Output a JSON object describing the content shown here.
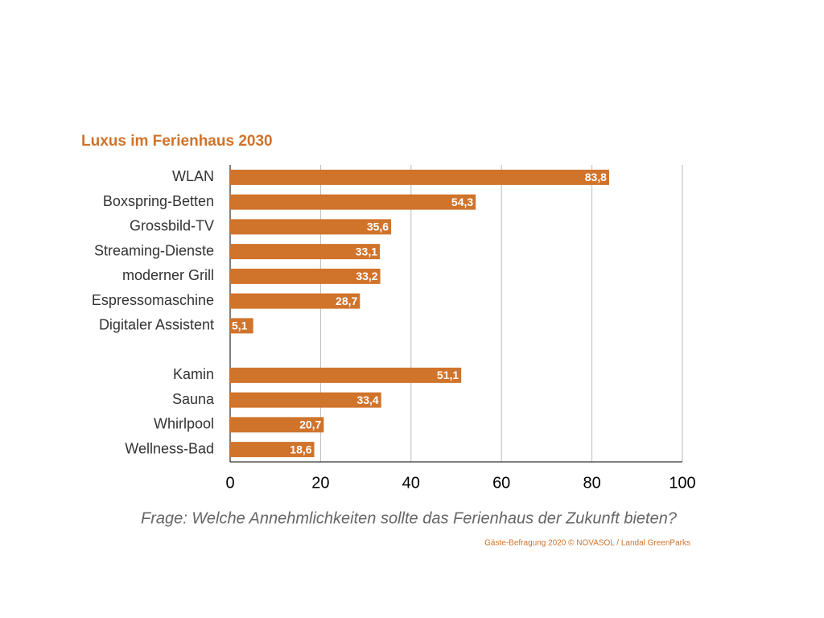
{
  "chart_data": {
    "type": "hbar",
    "title": "Luxus im Ferienhaus 2030",
    "categories": [
      "WLAN",
      "Boxspring-Betten",
      "Grossbild-TV",
      "Streaming-Dienste",
      "moderner Grill",
      "Espressomaschine",
      "Digitaler Assistent",
      null,
      "Kamin",
      "Sauna",
      "Whirlpool",
      "Wellness-Bad"
    ],
    "values": [
      83.8,
      54.3,
      35.6,
      33.1,
      33.2,
      28.7,
      5.1,
      null,
      51.1,
      33.4,
      20.7,
      18.6
    ],
    "value_labels": [
      "83,8",
      "54,3",
      "35,6",
      "33,1",
      "33,2",
      "28,7",
      "5,1",
      null,
      "51,1",
      "33,4",
      "20,7",
      "18,6"
    ],
    "color": "#d0732b",
    "xlim": [
      0,
      100
    ],
    "xticks": [
      0,
      20,
      40,
      60,
      80,
      100
    ],
    "grid": true,
    "caption": "Frage: Welche Annehmlichkeiten sollte das Ferienhaus der Zukunft bieten?",
    "source": "Gäste-Befragung 2020 © NOVASOL / Landal GreenParks"
  }
}
